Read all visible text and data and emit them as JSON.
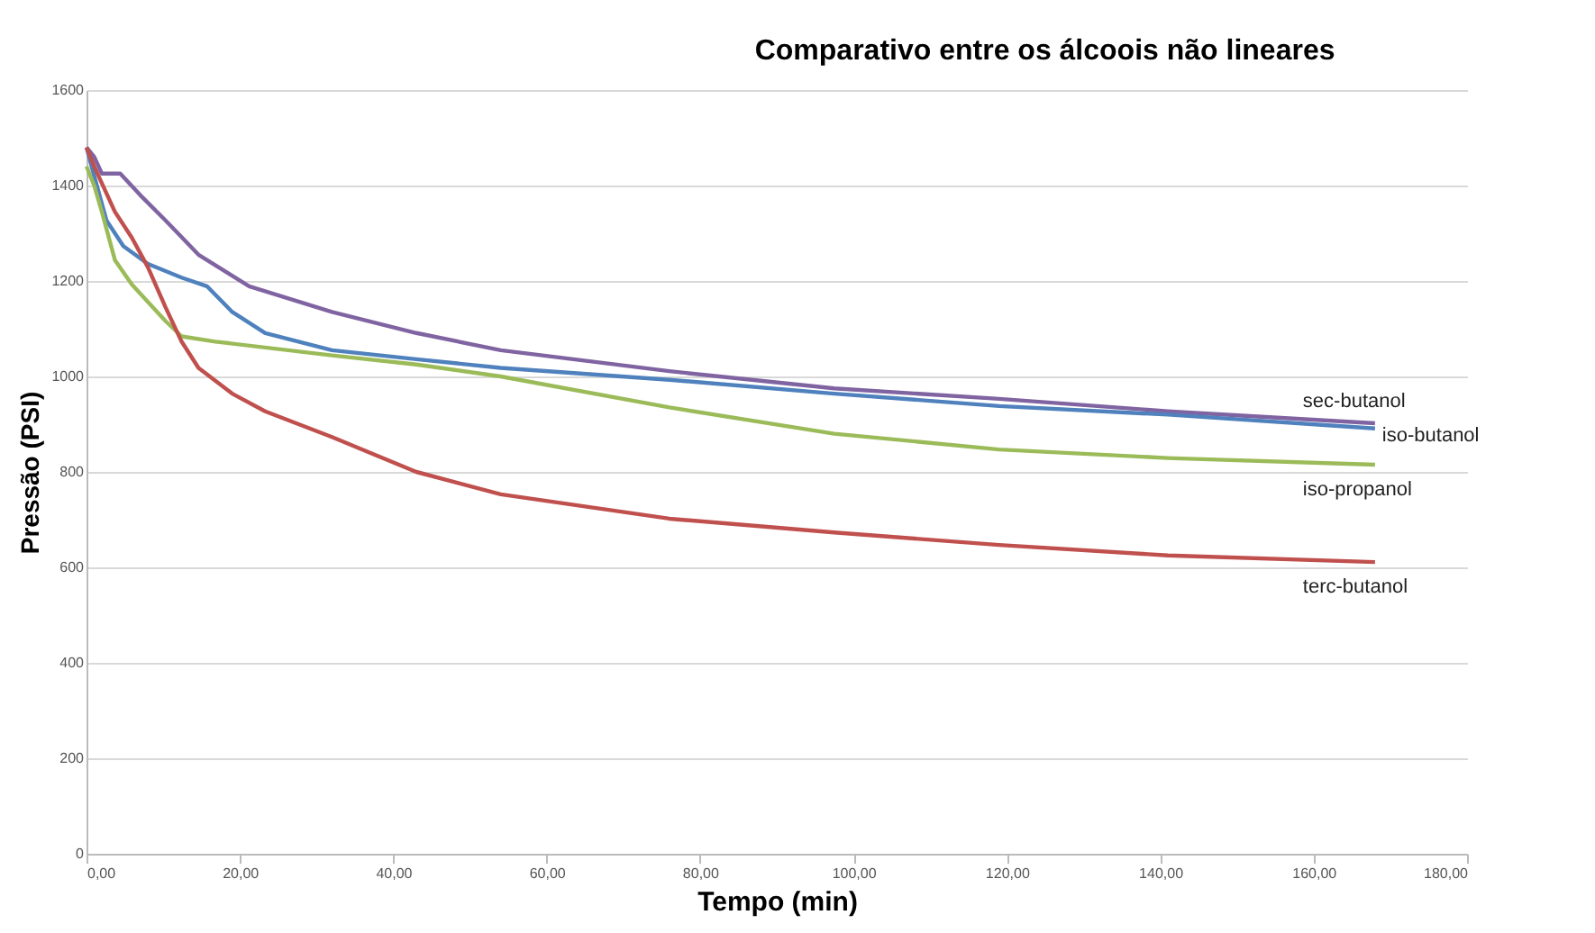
{
  "chart_data": {
    "type": "line",
    "title": "Comparativo entre os álcoois não lineares",
    "xlabel": "Tempo (min)",
    "ylabel": "Pressão (PSI)",
    "xlim": [
      0,
      180
    ],
    "xticks": [
      {
        "value": 0,
        "label": "0,00"
      },
      {
        "value": 20,
        "label": "20,00"
      },
      {
        "value": 40,
        "label": "40,00"
      },
      {
        "value": 60,
        "label": "60,00"
      },
      {
        "value": 80,
        "label": "80,00"
      },
      {
        "value": 100,
        "label": "100,00"
      },
      {
        "value": 120,
        "label": "120,00"
      },
      {
        "value": 140,
        "label": "140,00"
      },
      {
        "value": 160,
        "label": "160,00"
      },
      {
        "value": 180,
        "label": "180,00"
      }
    ],
    "ylim": [
      0,
      1600
    ],
    "yticks": [
      0,
      200,
      400,
      600,
      800,
      1000,
      1200,
      1400,
      1600
    ],
    "grid": "y",
    "series": [
      {
        "name": "sec-butanol",
        "color": "#8064a2",
        "x": [
          0,
          1,
          2,
          4.4,
          7,
          10.3,
          14.6,
          21.2,
          32,
          43,
          54,
          76,
          97.5,
          119,
          141,
          168
        ],
        "values": [
          1480,
          1460,
          1425,
          1425,
          1380,
          1327,
          1255,
          1189,
          1135,
          1091,
          1055,
          1011,
          975,
          953,
          927,
          902
        ]
      },
      {
        "name": "iso-butanol",
        "color": "#4f81bd",
        "x": [
          0,
          1,
          2.6,
          4.8,
          8,
          12.4,
          15.7,
          19,
          23.3,
          32,
          43,
          54,
          76,
          97.5,
          119,
          141,
          168
        ],
        "values": [
          1480,
          1420,
          1327,
          1273,
          1236,
          1207,
          1189,
          1135,
          1091,
          1055,
          1036,
          1018,
          993,
          964,
          938,
          920,
          891
        ]
      },
      {
        "name": "iso-propanol",
        "color": "#9bbb59",
        "x": [
          0,
          1,
          2,
          3.7,
          5.9,
          10.3,
          12.4,
          16.8,
          32,
          43,
          54,
          76,
          97.5,
          119,
          141,
          168
        ],
        "values": [
          1440,
          1400,
          1345,
          1244,
          1193,
          1116,
          1084,
          1073,
          1044,
          1025,
          1000,
          935,
          880,
          847,
          829,
          815
        ]
      },
      {
        "name": "terc-butanol",
        "color": "#c0504d",
        "x": [
          0,
          1,
          3.7,
          5.9,
          8,
          10.3,
          12.4,
          14.6,
          19,
          23.3,
          32,
          43,
          54,
          76,
          97.5,
          119,
          141,
          168
        ],
        "values": [
          1480,
          1440,
          1345,
          1291,
          1229,
          1145,
          1073,
          1018,
          964,
          927,
          873,
          800,
          753,
          702,
          673,
          647,
          625,
          611
        ]
      }
    ]
  }
}
